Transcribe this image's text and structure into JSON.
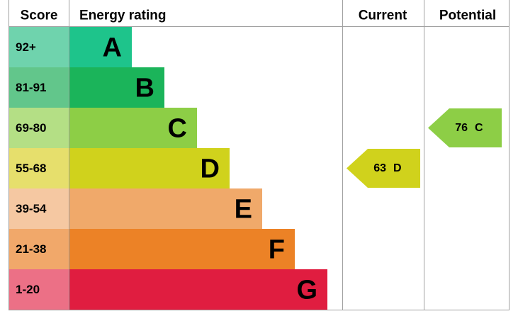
{
  "header": {
    "score": "Score",
    "rating": "Energy rating",
    "current": "Current",
    "potential": "Potential"
  },
  "bands": [
    {
      "score": "92+",
      "letter": "A",
      "color": "#1ec48b",
      "light": "#6fd3ad"
    },
    {
      "score": "81-91",
      "letter": "B",
      "color": "#1bb45a",
      "light": "#62c68b"
    },
    {
      "score": "69-80",
      "letter": "C",
      "color": "#8dce46",
      "light": "#b4df85"
    },
    {
      "score": "55-68",
      "letter": "D",
      "color": "#d0d21c",
      "light": "#e6df6c"
    },
    {
      "score": "39-54",
      "letter": "E",
      "color": "#f0a96a",
      "light": "#f5c8a2"
    },
    {
      "score": "21-38",
      "letter": "F",
      "color": "#ec8226",
      "light": "#f1a86a"
    },
    {
      "score": "1-20",
      "letter": "G",
      "color": "#e01d40",
      "light": "#ec7086"
    }
  ],
  "current": {
    "value": 63,
    "letter": "D"
  },
  "potential": {
    "value": 76,
    "letter": "C"
  }
}
